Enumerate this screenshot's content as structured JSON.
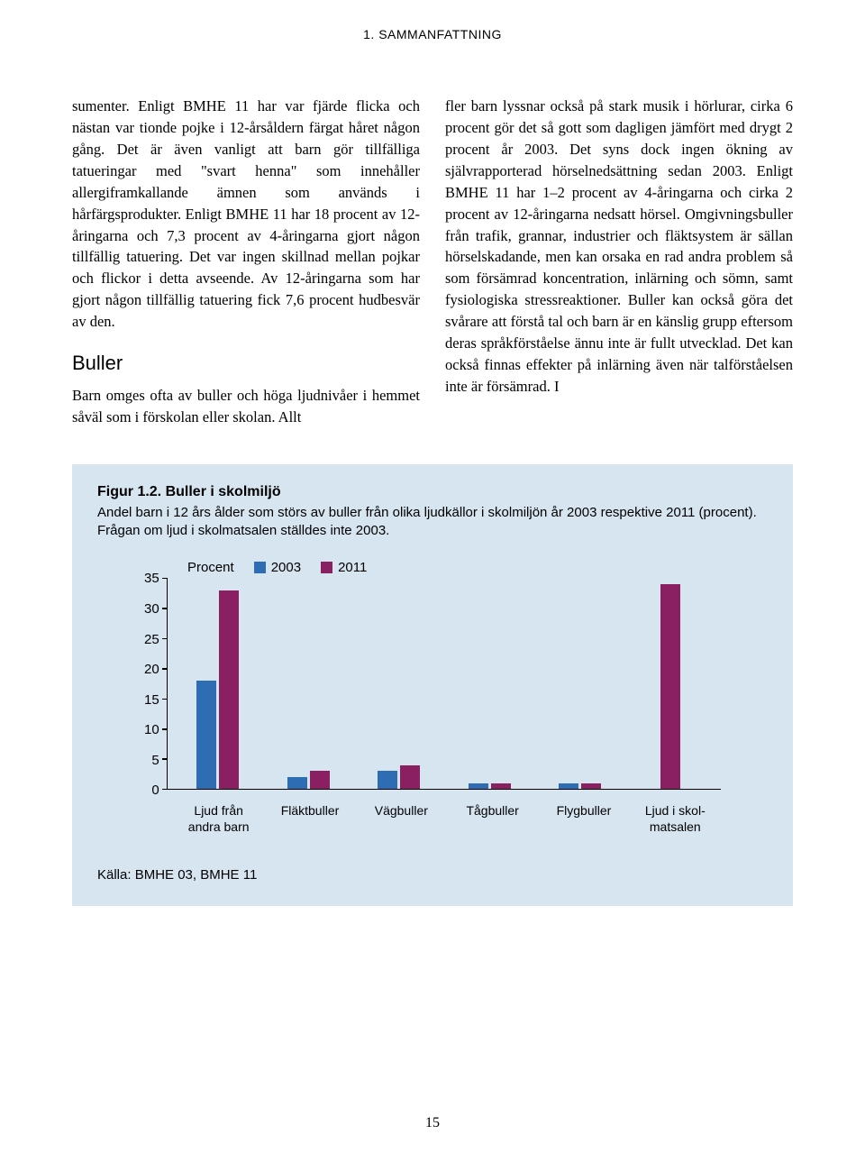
{
  "header": "1. SAMMANFATTNING",
  "col_left": {
    "p1": "sumenter. Enligt BMHE 11 har var fjärde flicka och nästan var tionde pojke i 12-årsåldern färgat håret någon gång. Det är även vanligt att barn gör tillfälliga tatueringar med \"svart henna\" som innehåller allergiframkallande ämnen som an­vänds i hårfärgsprodukter. Enligt BMHE 11 har 18 procent av 12-åringarna och 7,3 procent av 4-åringarna gjort någon tillfällig tatuering. Det var ingen skillnad mellan pojkar och flickor i detta avseende. Av 12-åringarna som har gjort någon tillfällig tatuering fick 7,6 procent hudbe­svär av den.",
    "subhead": "Buller",
    "p2": "Barn omges ofta av buller och höga ljudnivåer i hemmet såväl som i förskolan eller skolan. Allt"
  },
  "col_right": {
    "p1": "fler barn lyssnar också på stark musik i hörlu­rar, cirka 6 procent gör det så gott som dagli­gen jämfört med drygt 2 procent år 2003. Det syns dock ingen ökning av självrapporterad hör­selnedsättning sedan 2003. Enligt BMHE 11 har 1–2 procent av 4-åringarna och cirka 2 procent av 12-åringarna nedsatt hörsel. Omgivningsbul­ler från trafik, grannar, industrier och fläktsys­tem är sällan hörselskadande, men kan orsaka en rad andra problem så som försämrad koncen­tration, inlärning och sömn, samt fysiologiska stressreaktioner. Buller kan också göra det svå­rare att förstå tal och barn är en känslig grupp eftersom deras språkförståelse ännu inte är fullt utvecklad. Det kan också finnas effekter på inlär­ning även när talförståelsen inte är försämrad. I"
  },
  "figure": {
    "title_bold": "Figur 1.2. Buller i skolmiljö",
    "desc": "Andel barn i 12 års ålder som störs av buller från olika ljudkällor i skolmiljön år 2003 respektive 2011 (procent). Frågan om ljud i skolmatsalen ställdes inte 2003.",
    "y_label": "Procent",
    "legend": [
      {
        "label": "2003",
        "color": "#2e6db4"
      },
      {
        "label": "2011",
        "color": "#8a2061"
      }
    ],
    "y_max": 35,
    "y_ticks": [
      35,
      30,
      25,
      20,
      15,
      10,
      5,
      0
    ],
    "categories": [
      {
        "label": "Ljud från andra barn",
        "v2003": 18,
        "v2011": 33
      },
      {
        "label": "Fläktbuller",
        "v2003": 2,
        "v2011": 3
      },
      {
        "label": "Vägbuller",
        "v2003": 3,
        "v2011": 4
      },
      {
        "label": "Tågbuller",
        "v2003": 1,
        "v2011": 1
      },
      {
        "label": "Flygbuller",
        "v2003": 1,
        "v2011": 1
      },
      {
        "label": "Ljud i skol- matsalen",
        "v2003": null,
        "v2011": 34
      }
    ],
    "box_bg": "#d6e5ef",
    "source": "Källa: BMHE 03, BMHE 11"
  },
  "page_number": "15"
}
